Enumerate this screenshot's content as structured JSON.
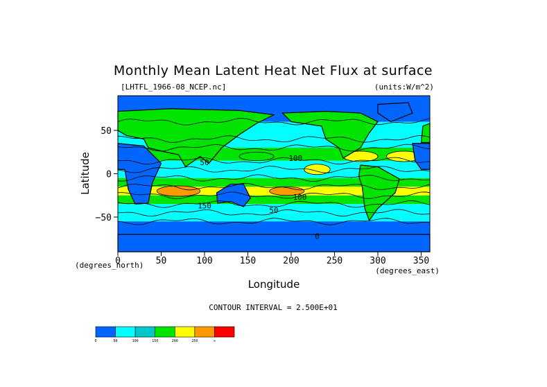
{
  "figure": {
    "title": "Monthly Mean Latent Heat Net Flux at surface",
    "file_label": "[LHTFL_1966-08_NCEP.nc]",
    "units_label": "(units:W/m^2)",
    "contour_interval_text": "CONTOUR INTERVAL = 2.500E+01"
  },
  "chart_data": {
    "type": "heatmap",
    "title": "Monthly Mean Latent Heat Net Flux at surface",
    "xlabel": "Longitude",
    "ylabel": "Latitude",
    "x_unit": "(degrees_east)",
    "y_unit": "(degrees_north)",
    "xlim": [
      0,
      360
    ],
    "ylim": [
      -90,
      90
    ],
    "x_ticks": [
      0,
      50,
      100,
      150,
      200,
      250,
      300,
      350
    ],
    "y_ticks": [
      50,
      0,
      -50
    ],
    "y_tick_labels": [
      "50",
      "0",
      "−50"
    ],
    "units": "W/m^2",
    "contour_interval": 25,
    "contour_annotations": [
      {
        "lon": 100,
        "lat": 10,
        "text": "50"
      },
      {
        "lon": 205,
        "lat": 15,
        "text": "100"
      },
      {
        "lon": 210,
        "lat": -30,
        "text": "100"
      },
      {
        "lon": 100,
        "lat": -40,
        "text": "150"
      },
      {
        "lon": 180,
        "lat": -45,
        "text": "50"
      },
      {
        "lon": 230,
        "lat": -75,
        "text": "0"
      }
    ],
    "colorbar": {
      "colors": [
        "#0066ff",
        "#00ffff",
        "#00c8c8",
        "#00e400",
        "#ffff00",
        "#ff9900",
        "#ff0000"
      ],
      "tick_labels": [
        "0",
        "50",
        "100",
        "150",
        "200",
        "250",
        "∞"
      ]
    },
    "field_bands": [
      {
        "lat_range": [
          60,
          90
        ],
        "level": 0
      },
      {
        "lat_range": [
          40,
          60
        ],
        "level": 1
      },
      {
        "lat_range": [
          30,
          40
        ],
        "level": 2
      },
      {
        "lat_range": [
          15,
          30
        ],
        "level": 3
      },
      {
        "lat_range": [
          5,
          15
        ],
        "level": 2
      },
      {
        "lat_range": [
          -5,
          5
        ],
        "level": 1
      },
      {
        "lat_range": [
          -15,
          -5
        ],
        "level": 3
      },
      {
        "lat_range": [
          -25,
          -15
        ],
        "level": 4
      },
      {
        "lat_range": [
          -35,
          -25
        ],
        "level": 3
      },
      {
        "lat_range": [
          -45,
          -35
        ],
        "level": 2
      },
      {
        "lat_range": [
          -55,
          -45
        ],
        "level": 1
      },
      {
        "lat_range": [
          -90,
          -55
        ],
        "level": 0
      }
    ],
    "hotspots": [
      {
        "lon": 70,
        "lat": -20,
        "rlon": 25,
        "rlat": 6,
        "level": 5
      },
      {
        "lon": 195,
        "lat": -20,
        "rlon": 20,
        "rlat": 5,
        "level": 5
      },
      {
        "lon": 280,
        "lat": 20,
        "rlon": 20,
        "rlat": 6,
        "level": 4
      },
      {
        "lon": 330,
        "lat": 20,
        "rlon": 20,
        "rlat": 6,
        "level": 4
      },
      {
        "lon": 230,
        "lat": 5,
        "rlon": 15,
        "rlat": 6,
        "level": 4
      },
      {
        "lon": 160,
        "lat": 20,
        "rlon": 20,
        "rlat": 5,
        "level": 3
      }
    ]
  }
}
